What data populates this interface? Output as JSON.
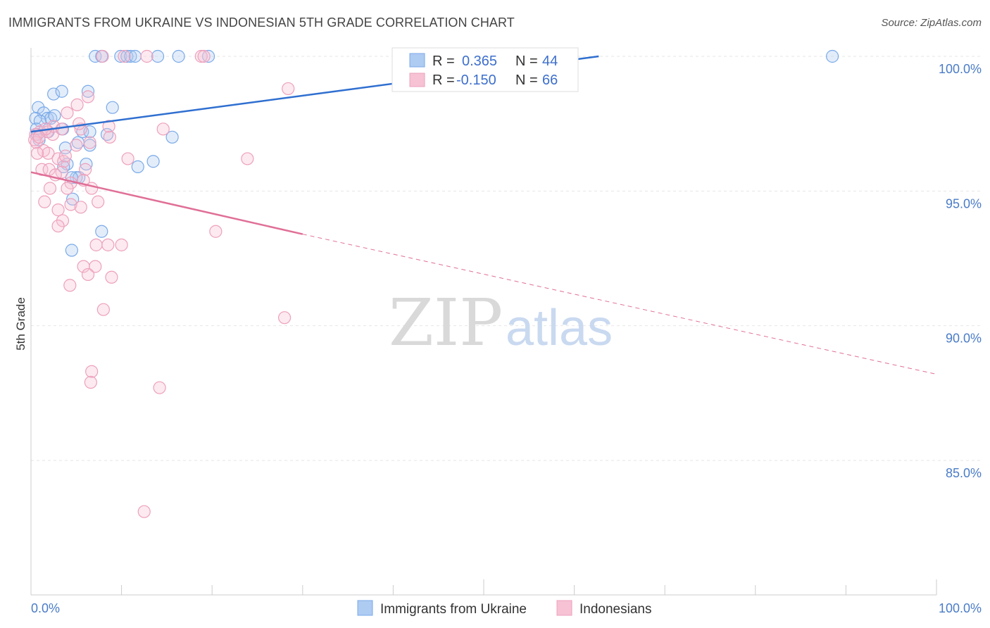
{
  "chart_data": {
    "type": "scatter",
    "title": "IMMIGRANTS FROM UKRAINE VS INDONESIAN 5TH GRADE CORRELATION CHART",
    "source": "Source: ZipAtlas.com",
    "xlabel": "",
    "ylabel": "5th Grade",
    "xlim": [
      0,
      100
    ],
    "ylim": [
      80.5,
      100.8
    ],
    "x_tick_labels": [
      "0.0%",
      "100.0%"
    ],
    "y_ticks": [
      {
        "value": 100,
        "label": "100.0%"
      },
      {
        "value": 95,
        "label": "95.0%"
      },
      {
        "value": 90,
        "label": "90.0%"
      },
      {
        "value": 85,
        "label": "85.0%"
      }
    ],
    "watermark": {
      "zip": "ZIP",
      "atlas": "atlas"
    },
    "legend": [
      {
        "r_label": "R =",
        "r_value": "0.365",
        "n_label": "N =",
        "n_value": "44"
      },
      {
        "r_label": "R =",
        "r_value": "-0.150",
        "n_label": "N =",
        "n_value": "66"
      }
    ],
    "series": [
      {
        "name": "Immigrants from Ukraine",
        "color": "#7aaae8",
        "fill": "#aecbf2",
        "line_color": "#2f6fd0",
        "trend": {
          "x0": 0,
          "y0": 97.2,
          "x1": 62.7,
          "y1": 100.0
        },
        "points": [
          [
            7.1,
            100.0
          ],
          [
            7.8,
            100.0
          ],
          [
            9.9,
            100.0
          ],
          [
            10.6,
            100.0
          ],
          [
            11.0,
            100.0
          ],
          [
            11.5,
            100.0
          ],
          [
            14.0,
            100.0
          ],
          [
            16.3,
            100.0
          ],
          [
            19.6,
            100.0
          ],
          [
            88.5,
            100.0
          ],
          [
            2.5,
            98.6
          ],
          [
            3.4,
            98.7
          ],
          [
            6.3,
            98.7
          ],
          [
            0.8,
            98.1
          ],
          [
            9.0,
            98.1
          ],
          [
            1.4,
            97.9
          ],
          [
            1.8,
            97.7
          ],
          [
            2.2,
            97.7
          ],
          [
            2.6,
            97.8
          ],
          [
            0.5,
            97.7
          ],
          [
            1.0,
            97.6
          ],
          [
            0.6,
            97.3
          ],
          [
            1.9,
            97.2
          ],
          [
            3.5,
            97.3
          ],
          [
            5.7,
            97.2
          ],
          [
            6.5,
            97.2
          ],
          [
            8.4,
            97.1
          ],
          [
            0.7,
            97.1
          ],
          [
            0.9,
            96.9
          ],
          [
            15.6,
            97.0
          ],
          [
            3.8,
            96.6
          ],
          [
            5.2,
            96.8
          ],
          [
            6.5,
            96.7
          ],
          [
            4.0,
            96.0
          ],
          [
            6.1,
            96.0
          ],
          [
            3.6,
            95.9
          ],
          [
            11.8,
            95.9
          ],
          [
            13.5,
            96.1
          ],
          [
            5.0,
            95.5
          ],
          [
            5.3,
            95.5
          ],
          [
            4.5,
            95.5
          ],
          [
            4.6,
            94.7
          ],
          [
            7.8,
            93.5
          ],
          [
            4.5,
            92.8
          ]
        ]
      },
      {
        "name": "Indonesians",
        "color": "#eda0bc",
        "fill": "#f6c2d4",
        "line_color": "#e06f97",
        "trend": {
          "x0": 0,
          "y0": 95.7,
          "x1": 30.0,
          "y1": 93.4
        },
        "trend_dashed": {
          "x0": 30.0,
          "y0": 93.4,
          "x1": 100,
          "y1": 88.2
        },
        "points": [
          [
            7.9,
            100.0
          ],
          [
            10.3,
            100.0
          ],
          [
            12.8,
            100.0
          ],
          [
            18.8,
            100.0
          ],
          [
            19.1,
            100.0
          ],
          [
            28.4,
            98.8
          ],
          [
            6.3,
            98.5
          ],
          [
            5.1,
            98.2
          ],
          [
            4.0,
            97.9
          ],
          [
            1.0,
            97.2
          ],
          [
            1.8,
            97.2
          ],
          [
            2.4,
            97.1
          ],
          [
            2.5,
            97.4
          ],
          [
            3.4,
            97.3
          ],
          [
            5.5,
            97.3
          ],
          [
            5.3,
            97.5
          ],
          [
            8.6,
            97.4
          ],
          [
            14.6,
            97.3
          ],
          [
            0.5,
            97.1
          ],
          [
            0.6,
            96.8
          ],
          [
            1.4,
            96.5
          ],
          [
            1.9,
            96.4
          ],
          [
            3.0,
            96.2
          ],
          [
            3.6,
            96.1
          ],
          [
            5.0,
            96.7
          ],
          [
            6.5,
            96.8
          ],
          [
            8.7,
            97.0
          ],
          [
            10.7,
            96.2
          ],
          [
            23.9,
            96.2
          ],
          [
            0.7,
            96.4
          ],
          [
            1.2,
            95.8
          ],
          [
            2.0,
            95.8
          ],
          [
            3.4,
            95.7
          ],
          [
            4.4,
            95.3
          ],
          [
            4.0,
            95.1
          ],
          [
            6.0,
            95.8
          ],
          [
            6.7,
            95.1
          ],
          [
            1.5,
            94.6
          ],
          [
            2.1,
            95.1
          ],
          [
            3.0,
            94.3
          ],
          [
            4.4,
            94.5
          ],
          [
            5.5,
            94.4
          ],
          [
            7.4,
            94.6
          ],
          [
            3.5,
            93.9
          ],
          [
            3.0,
            93.7
          ],
          [
            20.4,
            93.5
          ],
          [
            7.2,
            93.0
          ],
          [
            8.5,
            93.0
          ],
          [
            10.0,
            93.0
          ],
          [
            5.8,
            92.2
          ],
          [
            7.1,
            92.2
          ],
          [
            6.3,
            91.9
          ],
          [
            8.9,
            91.8
          ],
          [
            4.3,
            91.5
          ],
          [
            8.0,
            90.6
          ],
          [
            28.0,
            90.3
          ],
          [
            6.7,
            88.3
          ],
          [
            6.6,
            87.9
          ],
          [
            14.2,
            87.7
          ],
          [
            12.5,
            83.1
          ],
          [
            0.4,
            96.9
          ],
          [
            1.6,
            97.3
          ],
          [
            2.7,
            95.6
          ],
          [
            5.8,
            95.4
          ],
          [
            0.9,
            97.0
          ],
          [
            3.8,
            96.3
          ]
        ]
      }
    ]
  }
}
